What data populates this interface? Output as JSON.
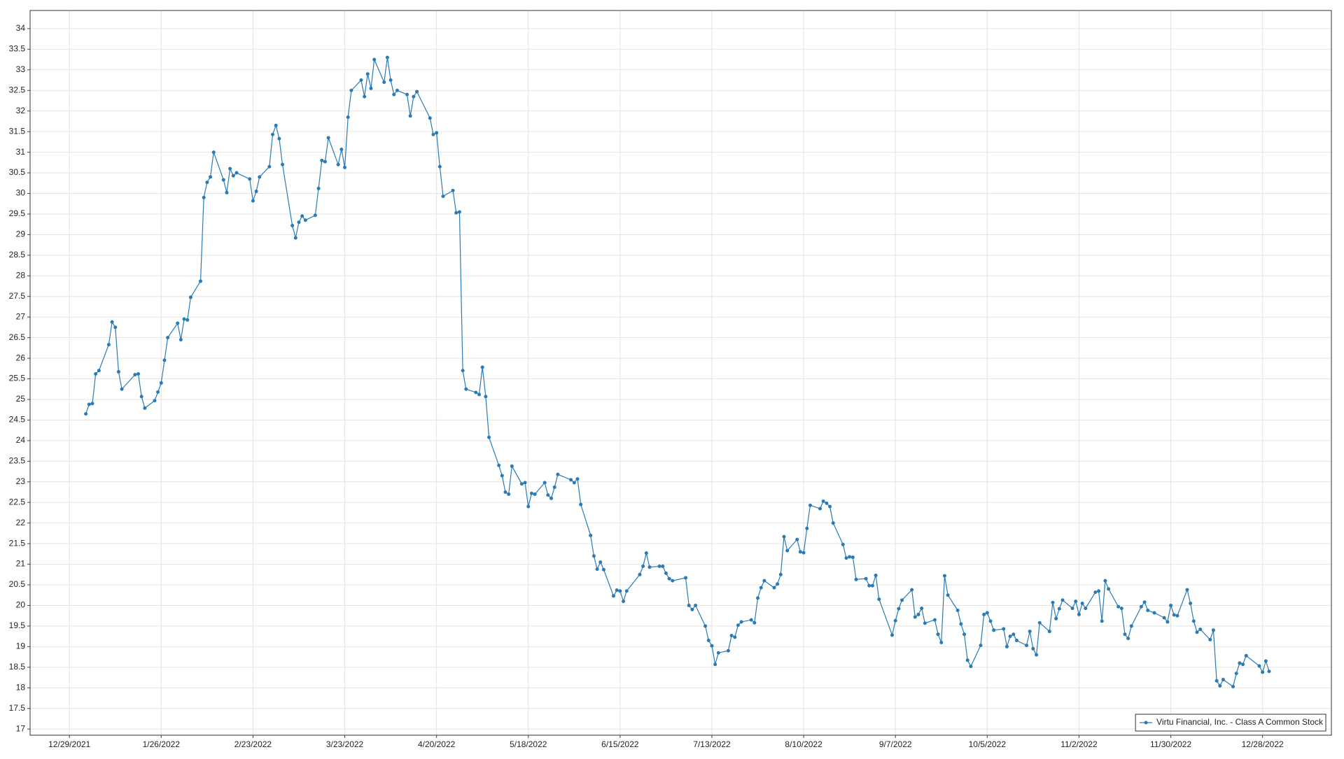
{
  "chart_data": {
    "type": "line",
    "x": [
      "1/3/2022",
      "1/4/2022",
      "1/5/2022",
      "1/6/2022",
      "1/7/2022",
      "1/10/2022",
      "1/11/2022",
      "1/12/2022",
      "1/13/2022",
      "1/14/2022",
      "1/18/2022",
      "1/19/2022",
      "1/20/2022",
      "1/21/2022",
      "1/24/2022",
      "1/25/2022",
      "1/26/2022",
      "1/27/2022",
      "1/28/2022",
      "1/31/2022",
      "2/1/2022",
      "2/2/2022",
      "2/3/2022",
      "2/4/2022",
      "2/7/2022",
      "2/8/2022",
      "2/9/2022",
      "2/10/2022",
      "2/11/2022",
      "2/14/2022",
      "2/15/2022",
      "2/16/2022",
      "2/17/2022",
      "2/18/2022",
      "2/22/2022",
      "2/23/2022",
      "2/24/2022",
      "2/25/2022",
      "2/28/2022",
      "3/1/2022",
      "3/2/2022",
      "3/3/2022",
      "3/4/2022",
      "3/7/2022",
      "3/8/2022",
      "3/9/2022",
      "3/10/2022",
      "3/11/2022",
      "3/14/2022",
      "3/15/2022",
      "3/16/2022",
      "3/17/2022",
      "3/18/2022",
      "3/21/2022",
      "3/22/2022",
      "3/23/2022",
      "3/24/2022",
      "3/25/2022",
      "3/28/2022",
      "3/29/2022",
      "3/30/2022",
      "3/31/2022",
      "4/1/2022",
      "4/4/2022",
      "4/5/2022",
      "4/6/2022",
      "4/7/2022",
      "4/8/2022",
      "4/11/2022",
      "4/12/2022",
      "4/13/2022",
      "4/14/2022",
      "4/18/2022",
      "4/19/2022",
      "4/20/2022",
      "4/21/2022",
      "4/22/2022",
      "4/25/2022",
      "4/26/2022",
      "4/27/2022",
      "4/28/2022",
      "4/29/2022",
      "5/2/2022",
      "5/3/2022",
      "5/4/2022",
      "5/5/2022",
      "5/6/2022",
      "5/9/2022",
      "5/10/2022",
      "5/11/2022",
      "5/12/2022",
      "5/13/2022",
      "5/16/2022",
      "5/17/2022",
      "5/18/2022",
      "5/19/2022",
      "5/20/2022",
      "5/23/2022",
      "5/24/2022",
      "5/25/2022",
      "5/26/2022",
      "5/27/2022",
      "5/31/2022",
      "6/1/2022",
      "6/2/2022",
      "6/3/2022",
      "6/6/2022",
      "6/7/2022",
      "6/8/2022",
      "6/9/2022",
      "6/10/2022",
      "6/13/2022",
      "6/14/2022",
      "6/15/2022",
      "6/16/2022",
      "6/17/2022",
      "6/21/2022",
      "6/22/2022",
      "6/23/2022",
      "6/24/2022",
      "6/27/2022",
      "6/28/2022",
      "6/29/2022",
      "6/30/2022",
      "7/1/2022",
      "7/5/2022",
      "7/6/2022",
      "7/7/2022",
      "7/8/2022",
      "7/11/2022",
      "7/12/2022",
      "7/13/2022",
      "7/14/2022",
      "7/15/2022",
      "7/18/2022",
      "7/19/2022",
      "7/20/2022",
      "7/21/2022",
      "7/22/2022",
      "7/25/2022",
      "7/26/2022",
      "7/27/2022",
      "7/28/2022",
      "7/29/2022",
      "8/1/2022",
      "8/2/2022",
      "8/3/2022",
      "8/4/2022",
      "8/5/2022",
      "8/8/2022",
      "8/9/2022",
      "8/10/2022",
      "8/11/2022",
      "8/12/2022",
      "8/15/2022",
      "8/16/2022",
      "8/17/2022",
      "8/18/2022",
      "8/19/2022",
      "8/22/2022",
      "8/23/2022",
      "8/24/2022",
      "8/25/2022",
      "8/26/2022",
      "8/29/2022",
      "8/30/2022",
      "8/31/2022",
      "9/1/2022",
      "9/2/2022",
      "9/6/2022",
      "9/7/2022",
      "9/8/2022",
      "9/9/2022",
      "9/12/2022",
      "9/13/2022",
      "9/14/2022",
      "9/15/2022",
      "9/16/2022",
      "9/19/2022",
      "9/20/2022",
      "9/21/2022",
      "9/22/2022",
      "9/23/2022",
      "9/26/2022",
      "9/27/2022",
      "9/28/2022",
      "9/29/2022",
      "9/30/2022",
      "10/3/2022",
      "10/4/2022",
      "10/5/2022",
      "10/6/2022",
      "10/7/2022",
      "10/10/2022",
      "10/11/2022",
      "10/12/2022",
      "10/13/2022",
      "10/14/2022",
      "10/17/2022",
      "10/18/2022",
      "10/19/2022",
      "10/20/2022",
      "10/21/2022",
      "10/24/2022",
      "10/25/2022",
      "10/26/2022",
      "10/27/2022",
      "10/28/2022",
      "10/31/2022",
      "11/1/2022",
      "11/2/2022",
      "11/3/2022",
      "11/4/2022",
      "11/7/2022",
      "11/8/2022",
      "11/9/2022",
      "11/10/2022",
      "11/11/2022",
      "11/14/2022",
      "11/15/2022",
      "11/16/2022",
      "11/17/2022",
      "11/18/2022",
      "11/21/2022",
      "11/22/2022",
      "11/23/2022",
      "11/25/2022",
      "11/28/2022",
      "11/29/2022",
      "11/30/2022",
      "12/1/2022",
      "12/2/2022",
      "12/5/2022",
      "12/6/2022",
      "12/7/2022",
      "12/8/2022",
      "12/9/2022",
      "12/12/2022",
      "12/13/2022",
      "12/14/2022",
      "12/15/2022",
      "12/16/2022",
      "12/19/2022",
      "12/20/2022",
      "12/21/2022",
      "12/22/2022",
      "12/23/2022",
      "12/27/2022",
      "12/28/2022",
      "12/29/2022",
      "12/30/2022"
    ],
    "series": [
      {
        "name": "Virtu Financial, Inc. - Class A Common Stock",
        "color": "#2a7ab4",
        "values": [
          24.65,
          24.88,
          24.9,
          25.62,
          25.7,
          26.33,
          26.88,
          26.75,
          25.67,
          25.25,
          25.6,
          25.62,
          25.07,
          24.79,
          24.97,
          25.18,
          25.4,
          25.95,
          26.5,
          26.85,
          26.45,
          26.95,
          26.93,
          27.48,
          27.87,
          29.9,
          30.27,
          30.4,
          31.0,
          30.33,
          30.02,
          30.6,
          30.43,
          30.5,
          30.35,
          29.82,
          30.05,
          30.4,
          30.65,
          31.43,
          31.65,
          31.33,
          30.7,
          29.22,
          28.92,
          29.3,
          29.45,
          29.35,
          29.47,
          30.12,
          30.8,
          30.77,
          31.35,
          30.7,
          31.07,
          30.63,
          31.85,
          32.5,
          32.75,
          32.35,
          32.9,
          32.55,
          33.25,
          32.7,
          33.3,
          32.75,
          32.4,
          32.5,
          32.4,
          31.88,
          32.35,
          32.47,
          31.83,
          31.43,
          31.47,
          30.65,
          29.93,
          30.07,
          29.53,
          29.55,
          25.7,
          25.25,
          25.17,
          25.12,
          25.78,
          25.07,
          24.08,
          23.4,
          23.15,
          22.75,
          22.7,
          23.38,
          22.95,
          22.98,
          22.4,
          22.72,
          22.7,
          22.98,
          22.68,
          22.6,
          22.87,
          23.18,
          23.05,
          22.98,
          23.07,
          22.45,
          21.7,
          21.2,
          20.88,
          21.05,
          20.87,
          20.23,
          20.37,
          20.35,
          20.1,
          20.35,
          20.75,
          20.95,
          21.27,
          20.93,
          20.95,
          20.95,
          20.78,
          20.65,
          20.6,
          20.67,
          20.0,
          19.9,
          20.0,
          19.5,
          19.15,
          19.02,
          18.57,
          18.85,
          18.9,
          19.27,
          19.23,
          19.52,
          19.6,
          19.65,
          19.58,
          20.18,
          20.43,
          20.6,
          20.43,
          20.52,
          20.75,
          21.67,
          21.33,
          21.6,
          21.3,
          21.28,
          21.87,
          22.43,
          22.35,
          22.53,
          22.48,
          22.4,
          22.0,
          21.48,
          21.15,
          21.18,
          21.17,
          20.63,
          20.65,
          20.48,
          20.48,
          20.73,
          20.15,
          19.28,
          19.63,
          19.92,
          20.13,
          20.38,
          19.72,
          19.78,
          19.93,
          19.57,
          19.65,
          19.3,
          19.1,
          20.72,
          20.25,
          19.88,
          19.55,
          19.3,
          18.67,
          18.52,
          19.03,
          19.78,
          19.82,
          19.62,
          19.4,
          19.43,
          19.0,
          19.25,
          19.3,
          19.15,
          19.03,
          19.37,
          18.95,
          18.8,
          19.58,
          19.37,
          20.07,
          19.68,
          19.92,
          20.13,
          19.93,
          20.1,
          19.78,
          20.05,
          19.93,
          20.32,
          20.35,
          19.62,
          20.6,
          20.4,
          19.97,
          19.93,
          19.3,
          19.2,
          19.5,
          19.97,
          20.08,
          19.88,
          19.82,
          19.7,
          19.6,
          20.0,
          19.77,
          19.75,
          20.38,
          20.05,
          19.62,
          19.35,
          19.42,
          19.17,
          19.4,
          18.17,
          18.05,
          18.2,
          18.03,
          18.35,
          18.6,
          18.57,
          18.78,
          18.53,
          18.38,
          18.65,
          18.4
        ]
      }
    ],
    "xlim": [
      "12/17/2021",
      "1/18/2023"
    ],
    "xticks": [
      "12/29/2021",
      "1/26/2022",
      "2/23/2022",
      "3/23/2022",
      "4/20/2022",
      "5/18/2022",
      "6/15/2022",
      "7/13/2022",
      "8/10/2022",
      "9/7/2022",
      "10/5/2022",
      "11/2/2022",
      "11/30/2022",
      "12/28/2022"
    ],
    "ylim": [
      16.85,
      34.44
    ],
    "yticks": [
      17,
      17.5,
      18,
      18.5,
      19,
      19.5,
      20,
      20.5,
      21,
      21.5,
      22,
      22.5,
      23,
      23.5,
      24,
      24.5,
      25,
      25.5,
      26,
      26.5,
      27,
      27.5,
      28,
      28.5,
      29,
      29.5,
      30,
      30.5,
      31,
      31.5,
      32,
      32.5,
      33,
      33.5,
      34
    ],
    "grid": true,
    "legend": "lower right"
  }
}
